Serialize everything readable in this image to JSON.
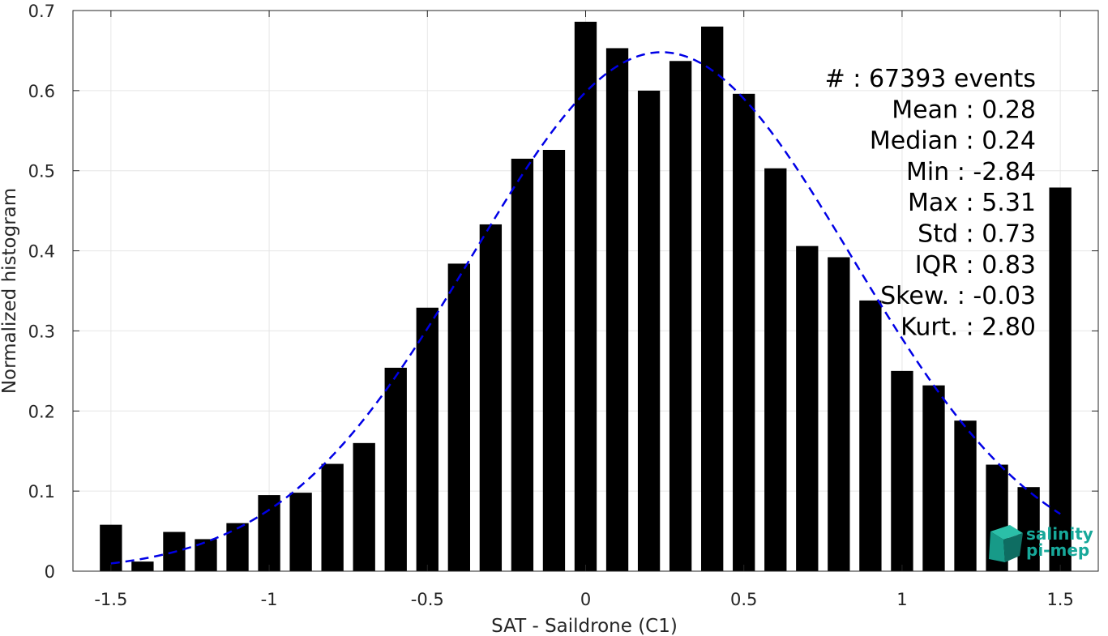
{
  "chart_data": {
    "type": "bar",
    "xlabel": "SAT - Saildrone (C1)",
    "ylabel": "Normalized histogram",
    "xlim": [
      -1.62,
      1.62
    ],
    "ylim": [
      0,
      0.7
    ],
    "xticks": [
      -1.5,
      -1,
      -0.5,
      0,
      0.5,
      1,
      1.5
    ],
    "xtick_labels": [
      "-1.5",
      "-1",
      "-0.5",
      "0",
      "0.5",
      "1",
      "1.5"
    ],
    "yticks": [
      0,
      0.1,
      0.2,
      0.3,
      0.4,
      0.5,
      0.6,
      0.7
    ],
    "ytick_labels": [
      "0",
      "0.1",
      "0.2",
      "0.3",
      "0.4",
      "0.5",
      "0.6",
      "0.7"
    ],
    "grid": true,
    "bar_color": "#000000",
    "bar_width": 0.07,
    "x": [
      -1.5,
      -1.4,
      -1.3,
      -1.2,
      -1.1,
      -1.0,
      -0.9,
      -0.8,
      -0.7,
      -0.6,
      -0.5,
      -0.4,
      -0.3,
      -0.2,
      -0.1,
      0.0,
      0.1,
      0.2,
      0.3,
      0.4,
      0.5,
      0.6,
      0.7,
      0.8,
      0.9,
      1.0,
      1.1,
      1.2,
      1.3,
      1.4,
      1.5
    ],
    "values": [
      0.058,
      0.012,
      0.049,
      0.04,
      0.06,
      0.095,
      0.098,
      0.134,
      0.16,
      0.254,
      0.329,
      0.384,
      0.433,
      0.515,
      0.526,
      0.686,
      0.653,
      0.6,
      0.637,
      0.68,
      0.596,
      0.503,
      0.406,
      0.392,
      0.338,
      0.25,
      0.232,
      0.188,
      0.133,
      0.105,
      0.479
    ],
    "fit": {
      "type": "gaussian",
      "mean": 0.24,
      "std": 0.6,
      "peak": 0.648,
      "x_range": [
        -1.5,
        1.5
      ],
      "color": "#0000e6",
      "style": "dashed"
    },
    "stats": [
      {
        "label": "#  ",
        "value": ": 67393 events"
      },
      {
        "label": "Mean ",
        "value": ": 0.28"
      },
      {
        "label": "Median ",
        "value": ": 0.24"
      },
      {
        "label": "Min ",
        "value": ": -2.84"
      },
      {
        "label": "Max ",
        "value": ": 5.31"
      },
      {
        "label": "Std ",
        "value": ": 0.73"
      },
      {
        "label": "IQR ",
        "value": ": 0.83"
      },
      {
        "label": "Skew. ",
        "value": ": -0.03"
      },
      {
        "label": "Kurt. ",
        "value": ": 2.80"
      }
    ]
  },
  "logo": {
    "line1": "salinity",
    "line2": "pi-mep",
    "color": "#17a89a"
  }
}
